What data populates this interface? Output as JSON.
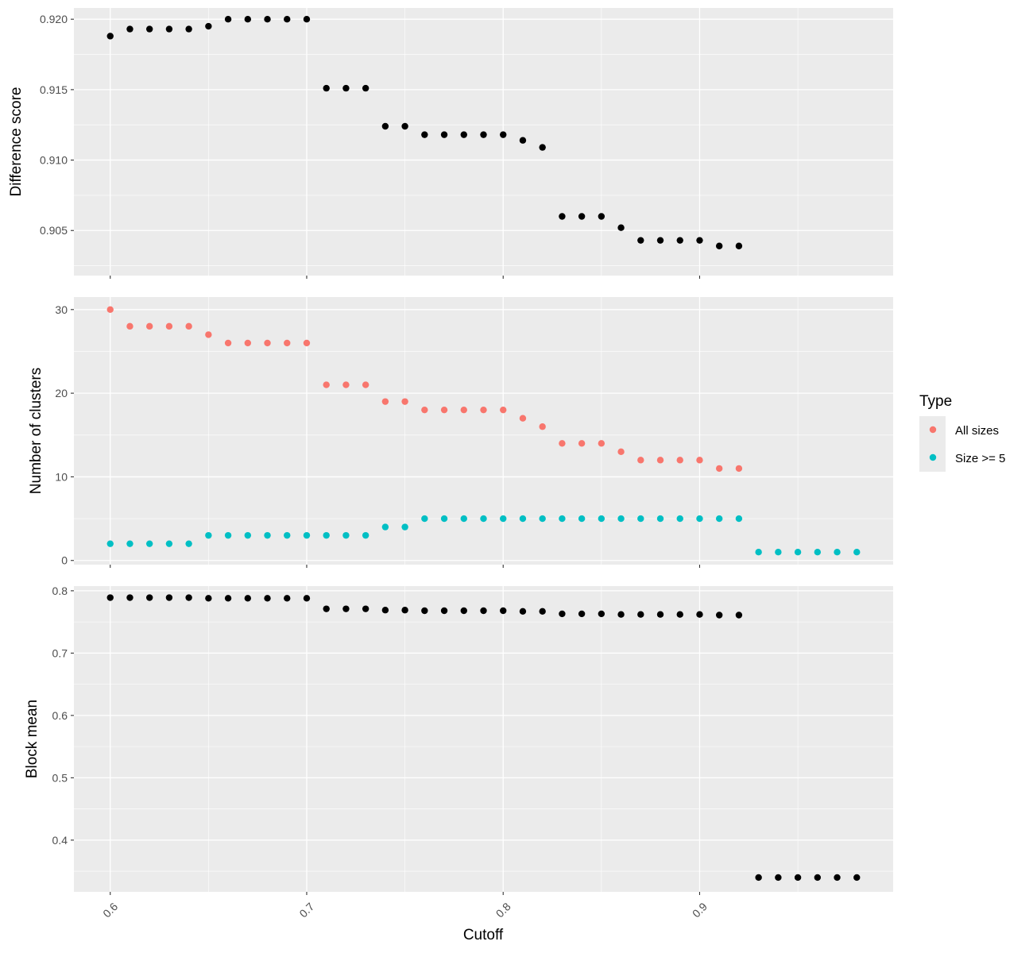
{
  "chart_data": {
    "type": "scatter",
    "xlabel": "Cutoff",
    "x_ticks": [
      0.6,
      0.7,
      0.8,
      0.9
    ],
    "x_tick_labels": [
      "0.6",
      "0.7",
      "0.8",
      "0.9"
    ],
    "xlim": [
      0.5815,
      0.9985
    ],
    "grid": true,
    "background": "#ebebeb",
    "legend": {
      "title": "Type",
      "placement": "right",
      "entries": [
        {
          "label": "All sizes",
          "color": "#f8766d"
        },
        {
          "label": "Size >= 5",
          "color": "#00bfc4"
        }
      ]
    },
    "panels": [
      {
        "ylabel": "Difference score",
        "ylim": [
          0.9018,
          0.9208
        ],
        "y_ticks": [
          0.905,
          0.91,
          0.915,
          0.92
        ],
        "y_tick_labels": [
          "0.905",
          "0.910",
          "0.915",
          "0.920"
        ],
        "series": [
          {
            "color": "#000000",
            "x": [
              0.6,
              0.61,
              0.62,
              0.63,
              0.64,
              0.65,
              0.66,
              0.67,
              0.68,
              0.69,
              0.7,
              0.71,
              0.72,
              0.73,
              0.74,
              0.75,
              0.76,
              0.77,
              0.78,
              0.79,
              0.8,
              0.81,
              0.82,
              0.83,
              0.84,
              0.85,
              0.86,
              0.87,
              0.88,
              0.89,
              0.9,
              0.91,
              0.92
            ],
            "y": [
              0.9188,
              0.9193,
              0.9193,
              0.9193,
              0.9193,
              0.9195,
              0.92,
              0.92,
              0.92,
              0.92,
              0.92,
              0.9151,
              0.9151,
              0.9151,
              0.9124,
              0.9124,
              0.9118,
              0.9118,
              0.9118,
              0.9118,
              0.9118,
              0.9114,
              0.9109,
              0.906,
              0.906,
              0.906,
              0.9052,
              0.9043,
              0.9043,
              0.9043,
              0.9043,
              0.9039,
              0.9039
            ]
          }
        ]
      },
      {
        "ylabel": "Number of clusters",
        "ylim": [
          -0.5,
          31.5
        ],
        "y_ticks": [
          0,
          10,
          20,
          30
        ],
        "y_tick_labels": [
          "0",
          "10",
          "20",
          "30"
        ],
        "series": [
          {
            "name": "All sizes",
            "color": "#f8766d",
            "x": [
              0.6,
              0.61,
              0.62,
              0.63,
              0.64,
              0.65,
              0.66,
              0.67,
              0.68,
              0.69,
              0.7,
              0.71,
              0.72,
              0.73,
              0.74,
              0.75,
              0.76,
              0.77,
              0.78,
              0.79,
              0.8,
              0.81,
              0.82,
              0.83,
              0.84,
              0.85,
              0.86,
              0.87,
              0.88,
              0.89,
              0.9,
              0.91,
              0.92
            ],
            "y": [
              30,
              28,
              28,
              28,
              28,
              27,
              26,
              26,
              26,
              26,
              26,
              21,
              21,
              21,
              19,
              19,
              18,
              18,
              18,
              18,
              18,
              17,
              16,
              14,
              14,
              14,
              13,
              12,
              12,
              12,
              12,
              11,
              11
            ]
          },
          {
            "name": "Size >= 5",
            "color": "#00bfc4",
            "x": [
              0.6,
              0.61,
              0.62,
              0.63,
              0.64,
              0.65,
              0.66,
              0.67,
              0.68,
              0.69,
              0.7,
              0.71,
              0.72,
              0.73,
              0.74,
              0.75,
              0.76,
              0.77,
              0.78,
              0.79,
              0.8,
              0.81,
              0.82,
              0.83,
              0.84,
              0.85,
              0.86,
              0.87,
              0.88,
              0.89,
              0.9,
              0.91,
              0.92,
              0.93,
              0.94,
              0.95,
              0.96,
              0.97,
              0.98
            ],
            "y": [
              2,
              2,
              2,
              2,
              2,
              3,
              3,
              3,
              3,
              3,
              3,
              3,
              3,
              3,
              4,
              4,
              5,
              5,
              5,
              5,
              5,
              5,
              5,
              5,
              5,
              5,
              5,
              5,
              5,
              5,
              5,
              5,
              5,
              1,
              1,
              1,
              1,
              1,
              1
            ]
          }
        ]
      },
      {
        "ylabel": "Block mean",
        "ylim": [
          0.317,
          0.8075
        ],
        "y_ticks": [
          0.4,
          0.5,
          0.6,
          0.7,
          0.8
        ],
        "y_tick_labels": [
          "0.4",
          "0.5",
          "0.6",
          "0.7",
          "0.8"
        ],
        "series": [
          {
            "color": "#000000",
            "x": [
              0.6,
              0.61,
              0.62,
              0.63,
              0.64,
              0.65,
              0.66,
              0.67,
              0.68,
              0.69,
              0.7,
              0.71,
              0.72,
              0.73,
              0.74,
              0.75,
              0.76,
              0.77,
              0.78,
              0.79,
              0.8,
              0.81,
              0.82,
              0.83,
              0.84,
              0.85,
              0.86,
              0.87,
              0.88,
              0.89,
              0.9,
              0.91,
              0.92,
              0.93,
              0.94,
              0.95,
              0.96,
              0.97,
              0.98
            ],
            "y": [
              0.789,
              0.789,
              0.789,
              0.789,
              0.789,
              0.788,
              0.788,
              0.788,
              0.788,
              0.788,
              0.788,
              0.771,
              0.771,
              0.771,
              0.769,
              0.769,
              0.768,
              0.768,
              0.768,
              0.768,
              0.768,
              0.767,
              0.767,
              0.763,
              0.763,
              0.763,
              0.762,
              0.762,
              0.762,
              0.762,
              0.762,
              0.761,
              0.761,
              0.34,
              0.34,
              0.34,
              0.34,
              0.34,
              0.34
            ]
          }
        ]
      }
    ]
  }
}
